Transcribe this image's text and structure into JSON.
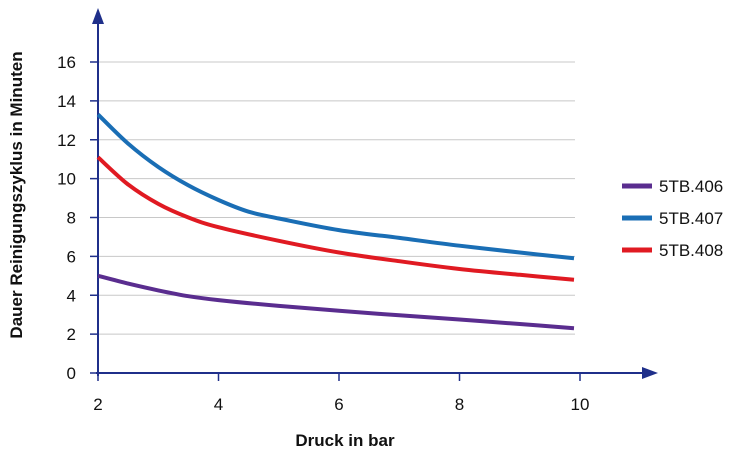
{
  "chart_data": {
    "type": "line",
    "title": "",
    "xlabel": "Druck in bar",
    "ylabel": "Dauer Reinigungszyklus in Minuten",
    "xlim": [
      2,
      10
    ],
    "ylim": [
      0,
      16
    ],
    "xticks": [
      2,
      4,
      6,
      8,
      10
    ],
    "yticks": [
      0,
      2,
      4,
      6,
      8,
      10,
      12,
      14,
      16
    ],
    "grid": "horizontal",
    "legend_position": "right",
    "series": [
      {
        "name": "5TB.406",
        "color": "#5a2d8f",
        "x": [
          2,
          2.5,
          3,
          3.5,
          4,
          5,
          6,
          7,
          8,
          9,
          9.9
        ],
        "y": [
          5.0,
          4.6,
          4.25,
          3.95,
          3.75,
          3.45,
          3.2,
          2.97,
          2.75,
          2.52,
          2.3
        ]
      },
      {
        "name": "5TB.407",
        "color": "#1a6eb5",
        "x": [
          2,
          2.5,
          3,
          3.5,
          4,
          4.5,
          5,
          6,
          7,
          8,
          9,
          9.9
        ],
        "y": [
          13.3,
          11.8,
          10.6,
          9.65,
          8.9,
          8.3,
          7.95,
          7.35,
          6.95,
          6.55,
          6.2,
          5.9
        ]
      },
      {
        "name": "5TB.408",
        "color": "#e01a22",
        "x": [
          2,
          2.5,
          3,
          3.5,
          4,
          5,
          6,
          7,
          8,
          9,
          9.9
        ],
        "y": [
          11.1,
          9.7,
          8.7,
          8.0,
          7.5,
          6.8,
          6.2,
          5.75,
          5.35,
          5.05,
          4.8
        ]
      }
    ]
  }
}
